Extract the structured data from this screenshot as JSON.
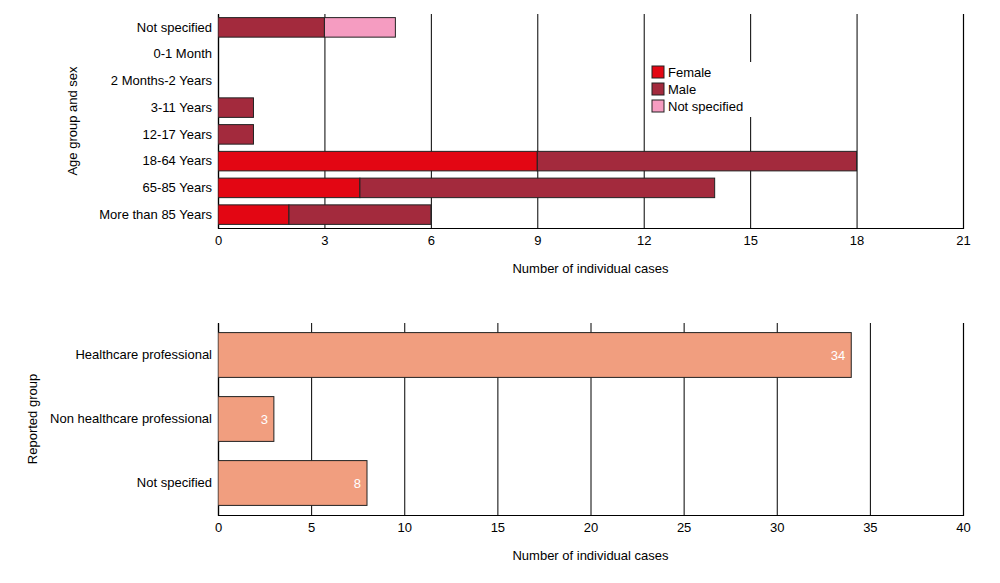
{
  "chart_data": [
    {
      "type": "bar",
      "orientation": "horizontal",
      "stacked": true,
      "grid": true,
      "legend": "upper right",
      "x_label": "Number of individual cases",
      "y_label": "Age group and sex",
      "categories": [
        "Not specified",
        "0-1 Month",
        "2 Months-2 Years",
        "3-11 Years",
        "12-17 Years",
        "18-64 Years",
        "65-85 Years",
        "More than 85 Years"
      ],
      "series": [
        {
          "name": "Female",
          "color": "#e30613",
          "values": [
            0,
            0,
            0,
            0,
            0,
            9,
            4,
            2
          ]
        },
        {
          "name": "Male",
          "color": "#a32a3d",
          "values": [
            3,
            0,
            0,
            1,
            1,
            9,
            10,
            4
          ]
        },
        {
          "name": "Not specified",
          "color": "#f59cc1",
          "values": [
            2,
            0,
            0,
            0,
            0,
            0,
            0,
            0
          ]
        }
      ],
      "xlim": [
        0,
        21
      ],
      "xticks": [
        0,
        3,
        6,
        9,
        12,
        15,
        18,
        21
      ]
    },
    {
      "type": "bar",
      "orientation": "horizontal",
      "grid": true,
      "data_labels": true,
      "x_label": "Number of individual cases",
      "y_label": "Reported group",
      "categories": [
        "Healthcare professional",
        "Non healthcare professional",
        "Not specified"
      ],
      "values": [
        34,
        3,
        8
      ],
      "color": "#f19e7f",
      "xlim": [
        0,
        40
      ],
      "xticks": [
        0,
        5,
        10,
        15,
        20,
        25,
        30,
        35,
        40
      ]
    }
  ]
}
